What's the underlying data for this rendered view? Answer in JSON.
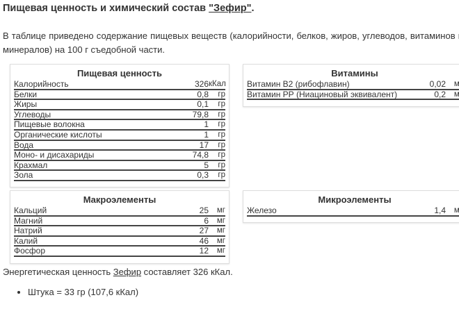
{
  "heading": {
    "prefix": "Пищевая ценность и химический состав ",
    "link": "\"Зефир\"",
    "suffix": "."
  },
  "intro": "В таблице приведено содержание пищевых веществ (калорийности, белков, жиров, углеводов, витаминов и минералов) на 100 г съедобной части.",
  "nutrition": {
    "title": "Пищевая ценность",
    "rows": [
      {
        "name": "Калорийность",
        "value": "326",
        "unit": "кКал"
      },
      {
        "name": "Белки",
        "value": "0,8",
        "unit": "гр"
      },
      {
        "name": "Жиры",
        "value": "0,1",
        "unit": "гр"
      },
      {
        "name": "Углеводы",
        "value": "79,8",
        "unit": "гр"
      },
      {
        "name": "Пищевые волокна",
        "value": "1",
        "unit": "гр"
      },
      {
        "name": "Органические кислоты",
        "value": "1",
        "unit": "гр"
      },
      {
        "name": "Вода",
        "value": "17",
        "unit": "гр"
      },
      {
        "name": "Моно- и дисахариды",
        "value": "74,8",
        "unit": "гр"
      },
      {
        "name": "Крахмал",
        "value": "5",
        "unit": "гр"
      },
      {
        "name": "Зола",
        "value": "0,3",
        "unit": "гр"
      }
    ]
  },
  "vitamins": {
    "title": "Витамины",
    "rows": [
      {
        "name": "Витамин В2 (рибофлавин)",
        "value": "0,02",
        "unit": "мг"
      },
      {
        "name": "Витамин РР (Ниациновый эквивалент)",
        "value": "0,2",
        "unit": "мг"
      }
    ]
  },
  "macro": {
    "title": "Макроэлементы",
    "rows": [
      {
        "name": "Кальций",
        "value": "25",
        "unit": "мг"
      },
      {
        "name": "Магний",
        "value": "6",
        "unit": "мг"
      },
      {
        "name": "Натрий",
        "value": "27",
        "unit": "мг"
      },
      {
        "name": "Калий",
        "value": "46",
        "unit": "мг"
      },
      {
        "name": "Фосфор",
        "value": "12",
        "unit": "мг"
      }
    ]
  },
  "micro": {
    "title": "Микроэлементы",
    "rows": [
      {
        "name": "Железо",
        "value": "1,4",
        "unit": "мг"
      }
    ]
  },
  "energy": {
    "prefix": "Энергетическая ценность ",
    "link": "Зефир",
    "suffix": " составляет 326 кКал."
  },
  "portions": [
    "Штука = 33 гр (107,6 кКал)"
  ]
}
